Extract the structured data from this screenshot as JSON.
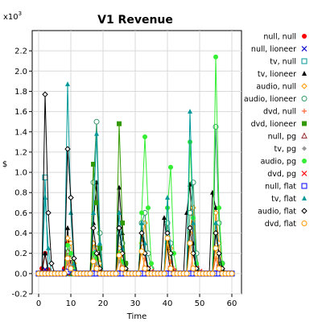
{
  "chart_data": {
    "type": "line",
    "title": "V1 Revenue",
    "xlabel": "Time",
    "ylabel": "$",
    "y_multiplier_label": "x10",
    "y_multiplier_exponent": "3",
    "xlim": [
      -2,
      63
    ],
    "ylim": [
      -0.2,
      2.4
    ],
    "x_ticks": [
      "0",
      "10",
      "20",
      "30",
      "40",
      "50",
      "60"
    ],
    "y_ticks": [
      "-0.2",
      "0.0",
      "0.2",
      "0.4",
      "0.6",
      "0.8",
      "1.0",
      "1.2",
      "1.4",
      "1.6",
      "1.8",
      "2.0",
      "2.2"
    ],
    "grid": true,
    "legend_position": "right",
    "series": [
      {
        "name": "null, null",
        "color": "#ff0000",
        "marker": "circle-filled",
        "x": [
          0,
          1,
          2,
          3,
          4,
          5,
          6,
          7,
          8,
          9,
          10,
          11,
          12,
          13
        ],
        "y": [
          0,
          0.05,
          0.2,
          0.04,
          0,
          0,
          0,
          0,
          0.05,
          0.3,
          0.06,
          0,
          0,
          0
        ]
      },
      {
        "name": "null, lioneer",
        "color": "#0000cc",
        "marker": "x",
        "x": [
          0,
          1,
          2,
          3,
          4,
          5,
          6,
          7,
          8,
          9,
          10,
          11,
          12
        ],
        "y": [
          0,
          0,
          0.04,
          0,
          0,
          0,
          0,
          0,
          0.02,
          0.03,
          0.01,
          0,
          0
        ]
      },
      {
        "name": "tv, null",
        "color": "#009999",
        "marker": "square-open",
        "x": [
          0,
          1,
          2,
          3,
          4,
          5,
          6,
          7,
          8,
          9,
          10,
          11,
          12,
          13,
          14,
          15,
          16,
          17,
          18,
          19,
          20
        ],
        "y": [
          0,
          0,
          0.95,
          0,
          0,
          0,
          0,
          0,
          0,
          0.02,
          0,
          0,
          0,
          0,
          0,
          0,
          0,
          0,
          0.25,
          0,
          0
        ]
      },
      {
        "name": "tv, lioneer",
        "color": "#000000",
        "marker": "triangle-filled",
        "x": [
          0,
          1,
          2,
          3,
          4,
          5,
          6,
          7,
          8,
          9,
          10,
          11,
          12,
          13,
          14,
          15,
          16,
          17,
          18,
          19,
          20,
          21,
          22,
          23,
          24,
          25,
          26,
          27,
          28,
          29,
          30,
          31,
          32,
          33,
          34,
          35,
          36,
          37,
          38,
          39,
          40,
          41,
          42,
          43,
          44,
          45,
          46,
          47,
          48,
          49,
          50,
          51,
          52,
          53,
          54,
          55,
          56,
          57,
          58
        ],
        "y": [
          0,
          0,
          0.2,
          0,
          0,
          0,
          0,
          0,
          0,
          0.45,
          0.08,
          0,
          0,
          0,
          0,
          0,
          0,
          0.5,
          0.9,
          0.2,
          0,
          0,
          0,
          0,
          0,
          0.85,
          0.4,
          0,
          0,
          0,
          0,
          0,
          0.5,
          0.2,
          0,
          0,
          0,
          0,
          0,
          0.55,
          0.25,
          0,
          0,
          0,
          0,
          0,
          0.6,
          0.88,
          0.3,
          0,
          0,
          0,
          0,
          0,
          0.8,
          0.65,
          0.1,
          0,
          0
        ]
      },
      {
        "name": "audio, null",
        "color": "#ff9900",
        "marker": "diamond-open",
        "x": [
          0,
          8,
          9,
          10,
          11,
          12,
          16,
          17,
          18,
          19,
          20,
          24,
          25,
          26,
          27,
          28,
          31,
          32,
          33,
          34,
          35,
          36,
          40,
          41,
          42,
          46,
          47,
          48,
          49,
          54,
          55,
          56,
          57,
          58
        ],
        "y": [
          0,
          0,
          0.35,
          0.3,
          0.1,
          0,
          0,
          0.3,
          0.25,
          0.1,
          0,
          0,
          0.25,
          0.15,
          0.05,
          0,
          0,
          0.3,
          0.5,
          0.2,
          0.05,
          0,
          0.3,
          0.25,
          0,
          0,
          0.4,
          0.65,
          0.2,
          0,
          0.6,
          0.3,
          0.1,
          0
        ]
      },
      {
        "name": "audio, lioneer",
        "color": "#339966",
        "marker": "circle-open",
        "x": [
          0,
          8,
          9,
          10,
          11,
          12,
          16,
          17,
          18,
          19,
          20,
          24,
          25,
          26,
          27,
          28,
          31,
          32,
          33,
          34,
          35,
          36,
          40,
          41,
          42,
          46,
          47,
          48,
          49,
          54,
          55,
          56,
          57,
          58
        ],
        "y": [
          0,
          0,
          0.25,
          0.18,
          0.05,
          0,
          0,
          0.9,
          1.5,
          0.4,
          0,
          0,
          0.4,
          0.3,
          0.1,
          0,
          0,
          0.5,
          0.6,
          0.2,
          0.05,
          0,
          0.5,
          0.3,
          0,
          0,
          0.6,
          0.9,
          0.2,
          0,
          1.45,
          0.5,
          0.1,
          0
        ]
      },
      {
        "name": "dvd, null",
        "color": "#ff6633",
        "marker": "plus",
        "x": [
          0,
          9,
          10,
          18,
          19,
          26,
          27,
          33,
          34,
          41,
          42,
          48,
          49,
          55,
          56
        ],
        "y": [
          0,
          0.1,
          0.05,
          0.15,
          0.05,
          0.2,
          0.05,
          0.15,
          0.05,
          0.12,
          0.05,
          0.2,
          0.05,
          0.15,
          0.05
        ]
      },
      {
        "name": "dvd, lioneer",
        "color": "#339900",
        "marker": "square-filled",
        "x": [
          0,
          16,
          17,
          18,
          19,
          20,
          24,
          25,
          26,
          27,
          28
        ],
        "y": [
          0,
          0,
          1.08,
          0.7,
          0.25,
          0,
          0,
          1.48,
          0.5,
          0.1,
          0
        ]
      },
      {
        "name": "null, pg",
        "color": "#993333",
        "marker": "triangle-open",
        "x": [
          0,
          9,
          10,
          11,
          12
        ],
        "y": [
          0,
          0.22,
          0.15,
          0.05,
          0
        ]
      },
      {
        "name": "tv, pg",
        "color": "#999999",
        "marker": "diamond-filled",
        "x": [
          0,
          9,
          10,
          11,
          17,
          18,
          19,
          25,
          26,
          27
        ],
        "y": [
          0,
          0.12,
          0.08,
          0,
          0.18,
          0.1,
          0,
          0.12,
          0.08,
          0
        ]
      },
      {
        "name": "audio, pg",
        "color": "#33ee33",
        "marker": "circle-filled",
        "x": [
          0,
          8,
          9,
          10,
          11,
          12,
          16,
          17,
          18,
          19,
          20,
          24,
          25,
          26,
          27,
          28,
          31,
          32,
          33,
          34,
          35,
          36,
          40,
          41,
          42,
          46,
          47,
          48,
          49,
          54,
          55,
          56,
          57,
          58
        ],
        "y": [
          0,
          0,
          0.28,
          0.2,
          0.05,
          0,
          0,
          0.2,
          0.15,
          0.05,
          0,
          0,
          0.2,
          0.12,
          0.05,
          0,
          0,
          0.6,
          1.35,
          0.65,
          0.1,
          0,
          0.65,
          1.05,
          0.2,
          0,
          1.3,
          0.55,
          0.1,
          0,
          2.14,
          0.65,
          0.1,
          0
        ]
      },
      {
        "name": "dvd, pg",
        "color": "#ff0000",
        "marker": "x",
        "x": [
          0,
          10,
          11,
          18,
          19,
          26,
          27,
          34,
          35,
          41,
          42,
          49,
          50,
          56,
          57
        ],
        "y": [
          0,
          0.05,
          0.02,
          0.05,
          0.02,
          0.05,
          0.02,
          0.05,
          0.02,
          0.05,
          0.02,
          0.05,
          0.02,
          0.05,
          0.02
        ]
      },
      {
        "name": "null, flat",
        "color": "#0000ff",
        "marker": "square-open",
        "x": [
          0,
          9,
          10,
          11,
          12
        ],
        "y": [
          0,
          0.02,
          0.04,
          0.01,
          0
        ]
      },
      {
        "name": "tv, flat",
        "color": "#009999",
        "marker": "triangle-filled",
        "x": [
          0,
          1,
          2,
          3,
          4,
          8,
          9,
          10,
          11,
          12,
          16,
          17,
          18,
          19,
          20,
          24,
          25,
          26,
          27,
          28,
          31,
          32,
          33,
          34,
          35,
          39,
          40,
          41,
          42,
          46,
          47,
          48,
          49,
          54,
          55,
          56,
          57,
          58
        ],
        "y": [
          0,
          0,
          0.75,
          0.25,
          0,
          0,
          1.87,
          0.6,
          0.1,
          0,
          0,
          0.6,
          1.38,
          0.3,
          0,
          0,
          0.6,
          0.25,
          0.05,
          0,
          0,
          0.5,
          0.3,
          0.05,
          0,
          0,
          0.75,
          0.2,
          0,
          0,
          1.6,
          0.5,
          0.05,
          0,
          0.5,
          0.2,
          0.05,
          0
        ]
      },
      {
        "name": "audio, flat",
        "color": "#000000",
        "marker": "diamond-open",
        "x": [
          0,
          1,
          2,
          3,
          4,
          5,
          8,
          9,
          10,
          11,
          12,
          16,
          17,
          18,
          19,
          20,
          24,
          25,
          26,
          27,
          28,
          31,
          32,
          33,
          34,
          35,
          39,
          40,
          41,
          42,
          46,
          47,
          48,
          49,
          54,
          55,
          56,
          57,
          58
        ],
        "y": [
          0,
          0,
          1.77,
          0.6,
          0.1,
          0,
          0,
          1.23,
          0.75,
          0.15,
          0,
          0,
          0.45,
          0.2,
          0.05,
          0,
          0,
          0.45,
          0.2,
          0.05,
          0,
          0,
          0.4,
          0.2,
          0.05,
          0,
          0,
          0.4,
          0.2,
          0,
          0,
          0.45,
          0.2,
          0.05,
          0,
          0.4,
          0.2,
          0.05,
          0
        ]
      },
      {
        "name": "dvd, flat",
        "color": "#ff9900",
        "marker": "circle-open",
        "x": [
          0,
          9,
          10,
          17,
          18,
          25,
          26,
          32,
          33,
          40,
          41,
          47,
          48,
          55,
          56
        ],
        "y": [
          0,
          0.15,
          0.05,
          0.12,
          0.05,
          0.18,
          0.05,
          0.22,
          0.05,
          0.35,
          0.05,
          0.3,
          0.05,
          0.25,
          0.05
        ]
      }
    ]
  }
}
